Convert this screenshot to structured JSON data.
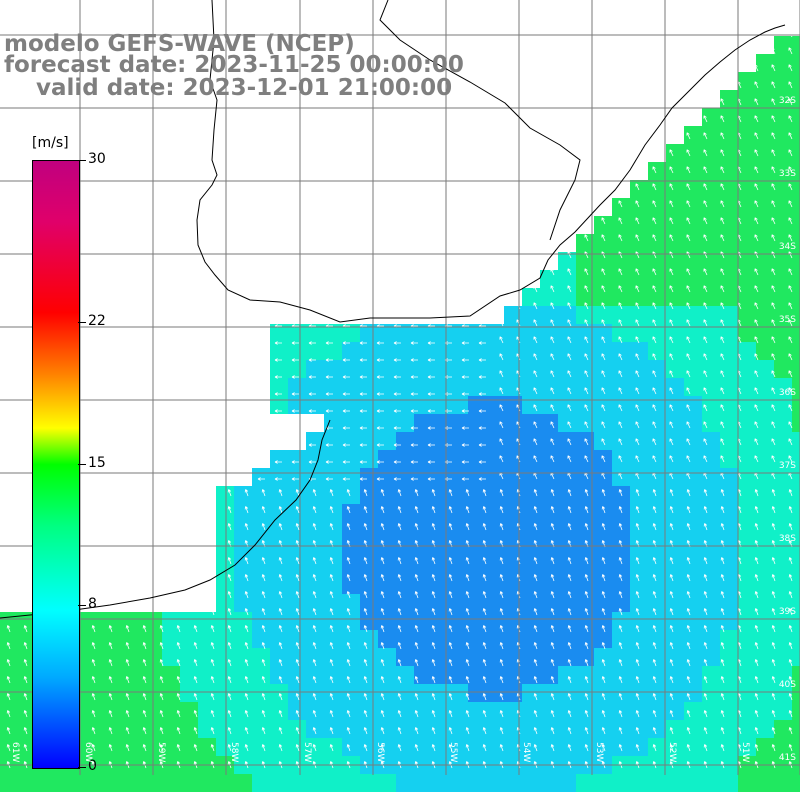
{
  "title": {
    "line1": "modelo GEFS-WAVE (NCEP)",
    "line2": "forecast date: 2023-11-25 00:00:00",
    "line3": "    valid date: 2023-12-01 21:00:00"
  },
  "colorbar": {
    "unit": "[m/s]",
    "min": 0,
    "max": 30,
    "ticks": [
      {
        "value": 30,
        "label": "30"
      },
      {
        "value": 22,
        "label": "22"
      },
      {
        "value": 15,
        "label": "15"
      },
      {
        "value": 8,
        "label": "8"
      },
      {
        "value": 0,
        "label": "0"
      }
    ]
  },
  "map": {
    "lat_labels": [
      "32S",
      "33S",
      "34S",
      "35S",
      "36S",
      "37S",
      "38S",
      "39S",
      "40S",
      "41S"
    ],
    "lon_labels": [
      "61W",
      "60W",
      "59W",
      "58W",
      "57W",
      "56W",
      "55W",
      "54W",
      "53W",
      "52W",
      "51W"
    ],
    "land_color": "#ffffff",
    "grid_color": "#7a7a7a",
    "arrow_color": "#ffffff",
    "coast_color": "#000000"
  }
}
